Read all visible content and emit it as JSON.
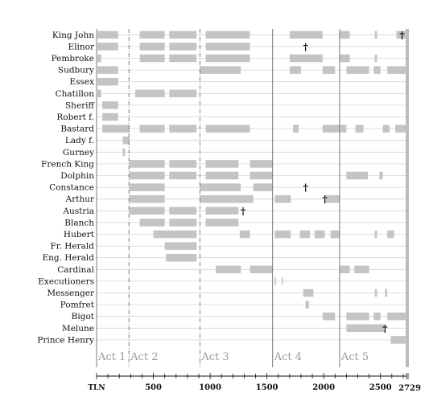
{
  "chart_data": {
    "type": "timeline",
    "xlabel": "TLN",
    "xlim": [
      0,
      2729
    ],
    "x_ticks": [
      500,
      1000,
      1500,
      2000,
      2500
    ],
    "x_end_label": "2729",
    "grid": true,
    "bar_color": "#c4c4c4",
    "act_divider_color": "#7a7a7a",
    "acts": [
      {
        "label": "Act 1",
        "start": 0
      },
      {
        "label": "Act 2",
        "start": 285
      },
      {
        "label": "Act 3",
        "start": 910
      },
      {
        "label": "Act 4",
        "start": 1550
      },
      {
        "label": "Act 5",
        "start": 2140
      }
    ],
    "characters": [
      {
        "name": "King John",
        "segments": [
          [
            0,
            190
          ],
          [
            380,
            600
          ],
          [
            640,
            880
          ],
          [
            960,
            1350
          ],
          [
            1700,
            1990
          ],
          [
            2140,
            2230
          ],
          [
            2450,
            2470
          ],
          [
            2640,
            2729
          ]
        ],
        "death": 2690
      },
      {
        "name": "Elinor",
        "segments": [
          [
            0,
            190
          ],
          [
            380,
            600
          ],
          [
            640,
            880
          ],
          [
            960,
            1350
          ]
        ],
        "death": 1840
      },
      {
        "name": "Pembroke",
        "segments": [
          [
            0,
            40
          ],
          [
            380,
            600
          ],
          [
            640,
            880
          ],
          [
            960,
            1350
          ],
          [
            1700,
            1990
          ],
          [
            2140,
            2230
          ],
          [
            2450,
            2470
          ]
        ]
      },
      {
        "name": "Sudbury",
        "segments": [
          [
            0,
            190
          ],
          [
            910,
            1270
          ],
          [
            1700,
            1800
          ],
          [
            1990,
            2100
          ],
          [
            2200,
            2400
          ],
          [
            2440,
            2500
          ],
          [
            2560,
            2729
          ]
        ]
      },
      {
        "name": "Essex",
        "segments": [
          [
            0,
            190
          ]
        ]
      },
      {
        "name": "Chatillon",
        "segments": [
          [
            0,
            40
          ],
          [
            340,
            600
          ],
          [
            640,
            880
          ]
        ]
      },
      {
        "name": "Sheriff",
        "segments": [
          [
            50,
            190
          ]
        ]
      },
      {
        "name": "Robert f.",
        "segments": [
          [
            50,
            190
          ]
        ]
      },
      {
        "name": "Bastard",
        "segments": [
          [
            50,
            290
          ],
          [
            380,
            600
          ],
          [
            640,
            880
          ],
          [
            960,
            1350
          ],
          [
            1730,
            1780
          ],
          [
            1990,
            2140
          ],
          [
            2140,
            2200
          ],
          [
            2280,
            2350
          ],
          [
            2520,
            2580
          ],
          [
            2630,
            2729
          ]
        ]
      },
      {
        "name": "Lady f.",
        "segments": [
          [
            230,
            290
          ]
        ]
      },
      {
        "name": "Gurney",
        "segments": [
          [
            230,
            250
          ]
        ]
      },
      {
        "name": "French King",
        "segments": [
          [
            290,
            600
          ],
          [
            640,
            880
          ],
          [
            960,
            1250
          ],
          [
            1350,
            1550
          ]
        ]
      },
      {
        "name": "Dolphin",
        "segments": [
          [
            290,
            600
          ],
          [
            640,
            880
          ],
          [
            960,
            1250
          ],
          [
            1350,
            1550
          ],
          [
            2200,
            2390
          ],
          [
            2490,
            2520
          ]
        ]
      },
      {
        "name": "Constance",
        "segments": [
          [
            290,
            600
          ],
          [
            910,
            1270
          ],
          [
            1380,
            1550
          ]
        ],
        "death": 1840
      },
      {
        "name": "Arthur",
        "segments": [
          [
            290,
            600
          ],
          [
            910,
            1380
          ],
          [
            1570,
            1710
          ],
          [
            2010,
            2140
          ]
        ],
        "death": 2010
      },
      {
        "name": "Austria",
        "segments": [
          [
            290,
            600
          ],
          [
            640,
            880
          ],
          [
            960,
            1250
          ]
        ],
        "death": 1290
      },
      {
        "name": "Blanch",
        "segments": [
          [
            380,
            600
          ],
          [
            640,
            880
          ],
          [
            960,
            1250
          ]
        ]
      },
      {
        "name": "Hubert",
        "segments": [
          [
            500,
            880
          ],
          [
            1260,
            1350
          ],
          [
            1570,
            1710
          ],
          [
            1790,
            1880
          ],
          [
            1920,
            2010
          ],
          [
            2060,
            2140
          ],
          [
            2450,
            2470
          ],
          [
            2560,
            2620
          ]
        ]
      },
      {
        "name": "Fr. Herald",
        "segments": [
          [
            600,
            880
          ]
        ]
      },
      {
        "name": "Eng. Herald",
        "segments": [
          [
            610,
            880
          ]
        ]
      },
      {
        "name": "Cardinal",
        "segments": [
          [
            1050,
            1270
          ],
          [
            1350,
            1550
          ],
          [
            2140,
            2230
          ],
          [
            2270,
            2400
          ]
        ]
      },
      {
        "name": "Executioners",
        "segments": [
          [
            1570,
            1580
          ],
          [
            1630,
            1640
          ]
        ]
      },
      {
        "name": "Messenger",
        "segments": [
          [
            1820,
            1910
          ],
          [
            2450,
            2470
          ],
          [
            2540,
            2560
          ]
        ]
      },
      {
        "name": "Pomfret",
        "segments": [
          [
            1840,
            1870
          ]
        ]
      },
      {
        "name": "Bigot",
        "segments": [
          [
            1990,
            2100
          ],
          [
            2200,
            2400
          ],
          [
            2440,
            2500
          ],
          [
            2560,
            2729
          ]
        ]
      },
      {
        "name": "Melune",
        "segments": [
          [
            2200,
            2540
          ]
        ],
        "death": 2540
      },
      {
        "name": "Prince Henry",
        "segments": [
          [
            2590,
            2729
          ]
        ]
      }
    ]
  }
}
